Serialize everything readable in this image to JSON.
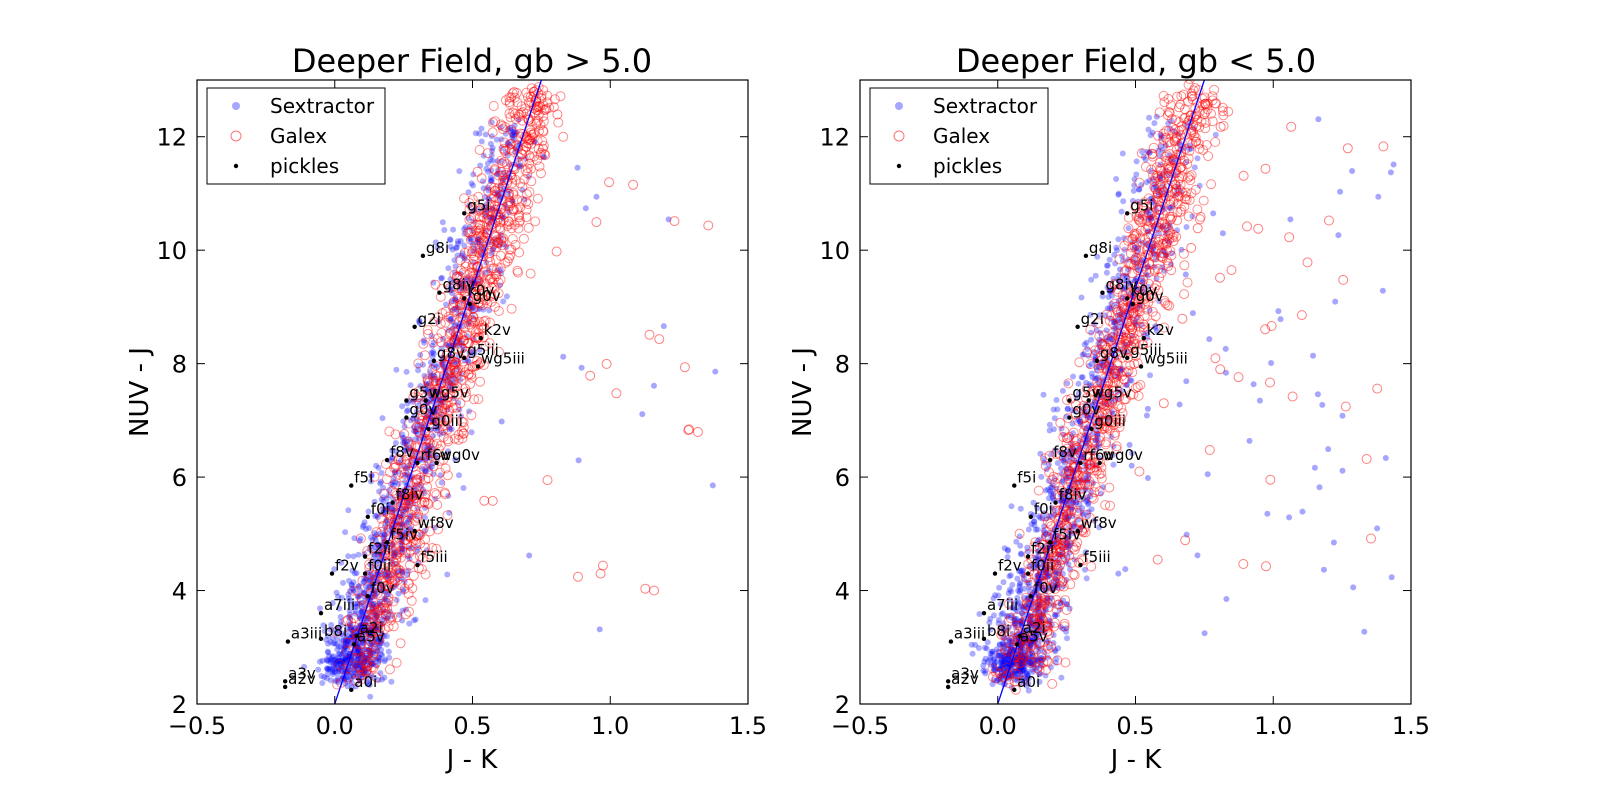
{
  "legend": [
    {
      "label": "Sextractor",
      "color": "#0000ff",
      "marker": "filled-circle"
    },
    {
      "label": "Galex",
      "color": "#ff0000",
      "marker": "open-circle"
    },
    {
      "label": "pickles",
      "color": "#000000",
      "marker": "dot"
    }
  ],
  "chart_data": [
    {
      "type": "scatter",
      "title": "Deeper Field, gb > 5.0",
      "xlabel": "J - K",
      "ylabel": "NUV - J",
      "xlim": [
        -0.5,
        1.5
      ],
      "ylim": [
        2,
        13
      ],
      "x_ticks": [
        "−0.5",
        "0.0",
        "0.5",
        "1.0",
        "1.5"
      ],
      "y_ticks": [
        "2",
        "4",
        "6",
        "8",
        "10",
        "12"
      ],
      "legend_position": "top-left",
      "grid": false,
      "fit_line": {
        "color": "#0000ff",
        "points": [
          [
            0.0,
            2.0
          ],
          [
            0.75,
            13.0
          ]
        ]
      },
      "pickles": [
        {
          "label": "g5i",
          "x": 0.47,
          "y": 10.65
        },
        {
          "label": "g8i",
          "x": 0.32,
          "y": 9.9
        },
        {
          "label": "g8iv",
          "x": 0.38,
          "y": 9.25
        },
        {
          "label": "k0v",
          "x": 0.47,
          "y": 9.15
        },
        {
          "label": "g0v",
          "x": 0.49,
          "y": 9.05
        },
        {
          "label": "g2i",
          "x": 0.29,
          "y": 8.65
        },
        {
          "label": "k2v",
          "x": 0.53,
          "y": 8.45
        },
        {
          "label": "g8v",
          "x": 0.36,
          "y": 8.05
        },
        {
          "label": "g5iii",
          "x": 0.47,
          "y": 8.1
        },
        {
          "label": "wg5iii",
          "x": 0.52,
          "y": 7.95
        },
        {
          "label": "g5v",
          "x": 0.26,
          "y": 7.35
        },
        {
          "label": "wg5v",
          "x": 0.33,
          "y": 7.35
        },
        {
          "label": "g0v",
          "x": 0.26,
          "y": 7.05
        },
        {
          "label": "g0iii",
          "x": 0.34,
          "y": 6.85
        },
        {
          "label": "f8v",
          "x": 0.19,
          "y": 6.3
        },
        {
          "label": "rf6v",
          "x": 0.3,
          "y": 6.25
        },
        {
          "label": "wg0v",
          "x": 0.37,
          "y": 6.25
        },
        {
          "label": "f5i",
          "x": 0.06,
          "y": 5.85
        },
        {
          "label": "f8iv",
          "x": 0.21,
          "y": 5.55
        },
        {
          "label": "f0i",
          "x": 0.12,
          "y": 5.3
        },
        {
          "label": "wf8v",
          "x": 0.29,
          "y": 5.05
        },
        {
          "label": "f5iv",
          "x": 0.19,
          "y": 4.85
        },
        {
          "label": "f2ii",
          "x": 0.11,
          "y": 4.6
        },
        {
          "label": "f5iii",
          "x": 0.3,
          "y": 4.45
        },
        {
          "label": "f2v",
          "x": -0.01,
          "y": 4.3
        },
        {
          "label": "f0ii",
          "x": 0.11,
          "y": 4.3
        },
        {
          "label": "f0v",
          "x": 0.12,
          "y": 3.9
        },
        {
          "label": "a7iii",
          "x": -0.05,
          "y": 3.6
        },
        {
          "label": "a3iii",
          "x": -0.17,
          "y": 3.1
        },
        {
          "label": "b8i",
          "x": -0.05,
          "y": 3.15
        },
        {
          "label": "a2i",
          "x": 0.08,
          "y": 3.2
        },
        {
          "label": "a5v",
          "x": 0.07,
          "y": 3.05
        },
        {
          "label": "a3v",
          "x": -0.18,
          "y": 2.4
        },
        {
          "label": "a2v",
          "x": -0.18,
          "y": 2.3
        },
        {
          "label": "a0i",
          "x": 0.06,
          "y": 2.25
        }
      ]
    },
    {
      "type": "scatter",
      "title": "Deeper Field, gb < 5.0",
      "xlabel": "J - K",
      "ylabel": "NUV - J",
      "xlim": [
        -0.5,
        1.5
      ],
      "ylim": [
        2,
        13
      ],
      "x_ticks": [
        "−0.5",
        "0.0",
        "0.5",
        "1.0",
        "1.5"
      ],
      "y_ticks": [
        "2",
        "4",
        "6",
        "8",
        "10",
        "12"
      ],
      "legend_position": "top-left",
      "grid": false,
      "fit_line": {
        "color": "#0000ff",
        "points": [
          [
            0.0,
            2.0
          ],
          [
            0.75,
            13.0
          ]
        ]
      },
      "pickles": [
        {
          "label": "g5i",
          "x": 0.47,
          "y": 10.65
        },
        {
          "label": "g8i",
          "x": 0.32,
          "y": 9.9
        },
        {
          "label": "g8iv",
          "x": 0.38,
          "y": 9.25
        },
        {
          "label": "k0v",
          "x": 0.47,
          "y": 9.15
        },
        {
          "label": "g0v",
          "x": 0.49,
          "y": 9.05
        },
        {
          "label": "g2i",
          "x": 0.29,
          "y": 8.65
        },
        {
          "label": "k2v",
          "x": 0.53,
          "y": 8.45
        },
        {
          "label": "g8v",
          "x": 0.36,
          "y": 8.05
        },
        {
          "label": "g5iii",
          "x": 0.47,
          "y": 8.1
        },
        {
          "label": "wg5iii",
          "x": 0.52,
          "y": 7.95
        },
        {
          "label": "g5v",
          "x": 0.26,
          "y": 7.35
        },
        {
          "label": "wg5v",
          "x": 0.33,
          "y": 7.35
        },
        {
          "label": "g0v",
          "x": 0.26,
          "y": 7.05
        },
        {
          "label": "g0iii",
          "x": 0.34,
          "y": 6.85
        },
        {
          "label": "f8v",
          "x": 0.19,
          "y": 6.3
        },
        {
          "label": "rf6v",
          "x": 0.3,
          "y": 6.25
        },
        {
          "label": "wg0v",
          "x": 0.37,
          "y": 6.25
        },
        {
          "label": "f5i",
          "x": 0.06,
          "y": 5.85
        },
        {
          "label": "f8iv",
          "x": 0.21,
          "y": 5.55
        },
        {
          "label": "f0i",
          "x": 0.12,
          "y": 5.3
        },
        {
          "label": "wf8v",
          "x": 0.29,
          "y": 5.05
        },
        {
          "label": "f5iv",
          "x": 0.19,
          "y": 4.85
        },
        {
          "label": "f2ii",
          "x": 0.11,
          "y": 4.6
        },
        {
          "label": "f5iii",
          "x": 0.3,
          "y": 4.45
        },
        {
          "label": "f2v",
          "x": -0.01,
          "y": 4.3
        },
        {
          "label": "f0ii",
          "x": 0.11,
          "y": 4.3
        },
        {
          "label": "f0v",
          "x": 0.12,
          "y": 3.9
        },
        {
          "label": "a7iii",
          "x": -0.05,
          "y": 3.6
        },
        {
          "label": "a3iii",
          "x": -0.17,
          "y": 3.1
        },
        {
          "label": "b8i",
          "x": -0.05,
          "y": 3.15
        },
        {
          "label": "a2i",
          "x": 0.08,
          "y": 3.2
        },
        {
          "label": "a5v",
          "x": 0.07,
          "y": 3.05
        },
        {
          "label": "a3v",
          "x": -0.18,
          "y": 2.4
        },
        {
          "label": "a2v",
          "x": -0.18,
          "y": 2.3
        },
        {
          "label": "a0i",
          "x": 0.06,
          "y": 2.25
        }
      ]
    }
  ]
}
